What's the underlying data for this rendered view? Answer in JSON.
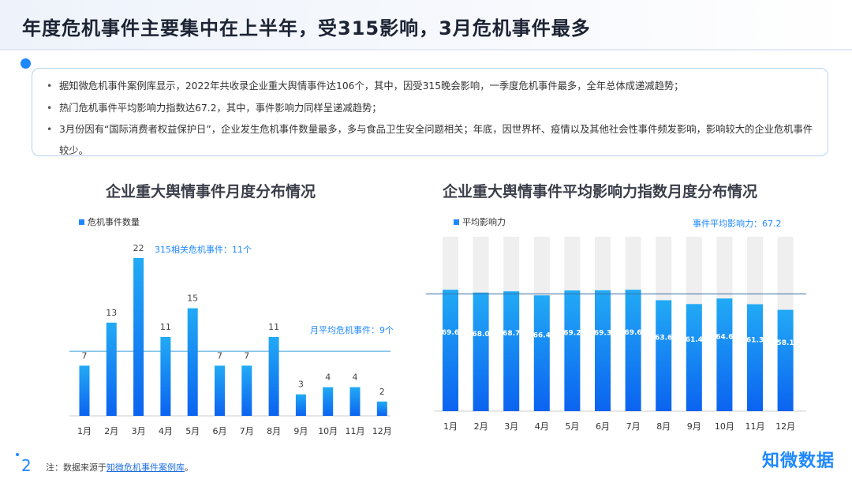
{
  "header": {
    "title": "年度危机事件主要集中在上半年，受315影响，3月危机事件最多"
  },
  "summary": {
    "bullets": [
      "据知微危机事件案例库显示，2022年共收录企业重大舆情事件达106个，其中，因受315晚会影响，一季度危机事件最多，全年总体成递减趋势；",
      "热门危机事件平均影响力指数达67.2，其中，事件影响力同样呈递减趋势；",
      "3月份因有“国际消费者权益保护日”，企业发生危机事件数量最多，多与食品卫生安全问题相关；年底，因世界杯、疫情以及其他社会性事件频发影响，影响较大的企业危机事件较少。"
    ]
  },
  "colors": {
    "accent": "#1e88ff",
    "bar_top": "#22aaf5",
    "bar_bottom": "#0b63f0",
    "track": "#efefef",
    "ref_line": "#3aa2dc"
  },
  "chart_data": [
    {
      "type": "bar",
      "title": "企业重大舆情事件月度分布情况",
      "categories": [
        "1月",
        "2月",
        "3月",
        "4月",
        "5月",
        "6月",
        "7月",
        "8月",
        "9月",
        "10月",
        "11月",
        "12月"
      ],
      "series": [
        {
          "name": "危机事件数量",
          "values": [
            7,
            13,
            22,
            11,
            15,
            7,
            7,
            11,
            3,
            4,
            4,
            2
          ]
        }
      ],
      "ylim": [
        0,
        22
      ],
      "annotations": [
        {
          "text": "315相关危机事件：11个"
        },
        {
          "text": "月平均危机事件：9个",
          "value": 9
        }
      ],
      "legend": "top-left",
      "grid": false
    },
    {
      "type": "bar",
      "title": "企业重大舆情事件平均影响力指数月度分布情况",
      "categories": [
        "1月",
        "2月",
        "3月",
        "4月",
        "5月",
        "6月",
        "7月",
        "8月",
        "9月",
        "10月",
        "11月",
        "12月"
      ],
      "series": [
        {
          "name": "平均影响力",
          "values": [
            69.6,
            68.0,
            68.7,
            66.4,
            69.2,
            69.3,
            69.6,
            63.6,
            61.4,
            64.6,
            61.3,
            58.1
          ]
        }
      ],
      "ylim": [
        0,
        100
      ],
      "annotations": [
        {
          "text": "事件平均影响力：67.2",
          "value": 67.2
        }
      ],
      "legend": "top-left",
      "grid": false
    }
  ],
  "footer": {
    "page": "2",
    "note_prefix": "注：数据来源于",
    "note_source": "知微危机事件案例库",
    "note_suffix": "。",
    "brand": "知微数据"
  }
}
